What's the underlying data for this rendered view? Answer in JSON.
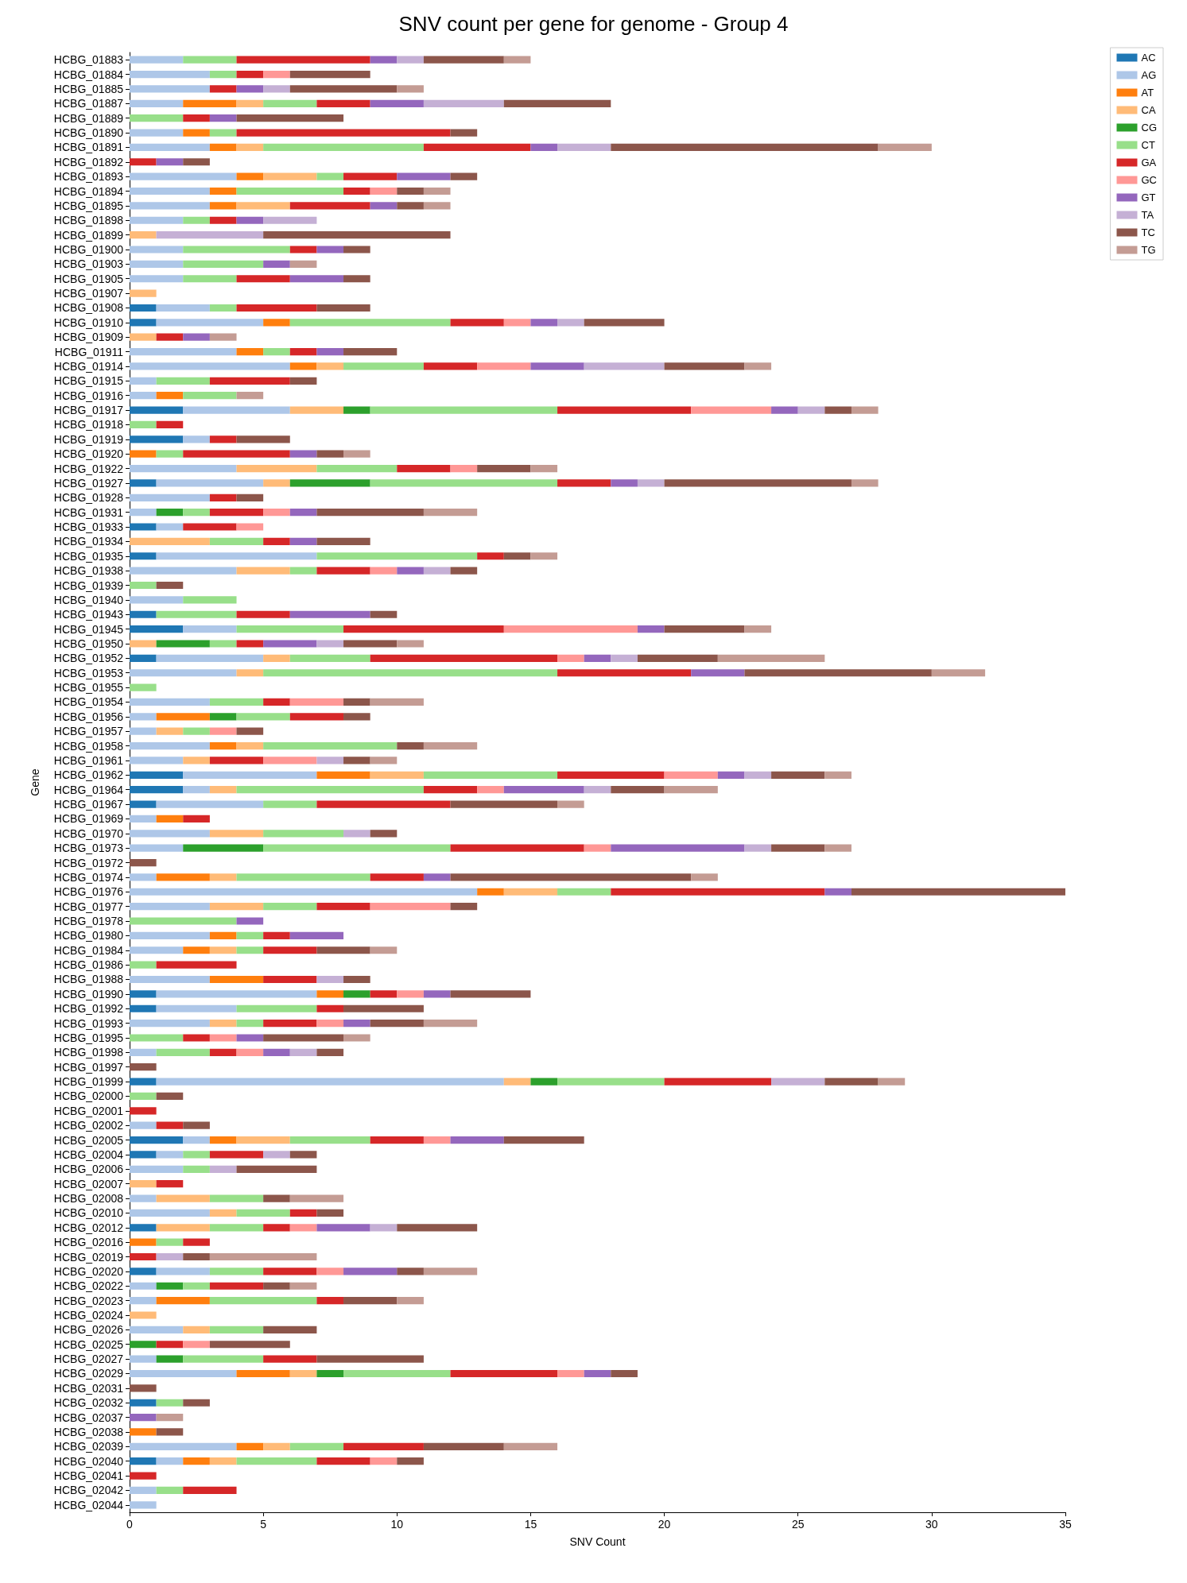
{
  "chart_data": {
    "type": "bar",
    "orientation": "horizontal",
    "stacked": true,
    "title": "SNV count per gene for genome - Group 4",
    "xlabel": "SNV Count",
    "ylabel": "Gene",
    "legend": "top right",
    "grid": false,
    "xlim": [
      0,
      35
    ],
    "xticks": [
      0,
      5,
      10,
      15,
      20,
      25,
      30,
      35
    ],
    "categories": [
      "HCBG_01883",
      "HCBG_01884",
      "HCBG_01885",
      "HCBG_01887",
      "HCBG_01889",
      "HCBG_01890",
      "HCBG_01891",
      "HCBG_01892",
      "HCBG_01893",
      "HCBG_01894",
      "HCBG_01895",
      "HCBG_01898",
      "HCBG_01899",
      "HCBG_01900",
      "HCBG_01903",
      "HCBG_01905",
      "HCBG_01907",
      "HCBG_01908",
      "HCBG_01910",
      "HCBG_01909",
      "HCBG_01911",
      "HCBG_01914",
      "HCBG_01915",
      "HCBG_01916",
      "HCBG_01917",
      "HCBG_01918",
      "HCBG_01919",
      "HCBG_01920",
      "HCBG_01922",
      "HCBG_01927",
      "HCBG_01928",
      "HCBG_01931",
      "HCBG_01933",
      "HCBG_01934",
      "HCBG_01935",
      "HCBG_01938",
      "HCBG_01939",
      "HCBG_01940",
      "HCBG_01943",
      "HCBG_01945",
      "HCBG_01950",
      "HCBG_01952",
      "HCBG_01953",
      "HCBG_01955",
      "HCBG_01954",
      "HCBG_01956",
      "HCBG_01957",
      "HCBG_01958",
      "HCBG_01961",
      "HCBG_01962",
      "HCBG_01964",
      "HCBG_01967",
      "HCBG_01969",
      "HCBG_01970",
      "HCBG_01973",
      "HCBG_01972",
      "HCBG_01974",
      "HCBG_01976",
      "HCBG_01977",
      "HCBG_01978",
      "HCBG_01980",
      "HCBG_01984",
      "HCBG_01986",
      "HCBG_01988",
      "HCBG_01990",
      "HCBG_01992",
      "HCBG_01993",
      "HCBG_01995",
      "HCBG_01998",
      "HCBG_01997",
      "HCBG_01999",
      "HCBG_02000",
      "HCBG_02001",
      "HCBG_02002",
      "HCBG_02005",
      "HCBG_02004",
      "HCBG_02006",
      "HCBG_02007",
      "HCBG_02008",
      "HCBG_02010",
      "HCBG_02012",
      "HCBG_02016",
      "HCBG_02019",
      "HCBG_02020",
      "HCBG_02022",
      "HCBG_02023",
      "HCBG_02024",
      "HCBG_02026",
      "HCBG_02025",
      "HCBG_02027",
      "HCBG_02029",
      "HCBG_02031",
      "HCBG_02032",
      "HCBG_02037",
      "HCBG_02038",
      "HCBG_02039",
      "HCBG_02040",
      "HCBG_02041",
      "HCBG_02042",
      "HCBG_02044"
    ],
    "series": [
      {
        "name": "AC",
        "color": "#1f77b4",
        "values": [
          0,
          0,
          0,
          0,
          0,
          0,
          0,
          0,
          0,
          0,
          0,
          0,
          0,
          0,
          0,
          0,
          0,
          1,
          1,
          0,
          0,
          0,
          0,
          0,
          2,
          0,
          2,
          0,
          0,
          1,
          0,
          0,
          1,
          0,
          1,
          0,
          0,
          0,
          1,
          2,
          0,
          1,
          0,
          0,
          0,
          0,
          0,
          0,
          0,
          2,
          2,
          1,
          0,
          0,
          0,
          0,
          0,
          0,
          0,
          0,
          0,
          0,
          0,
          0,
          1,
          1,
          0,
          0,
          0,
          0,
          1,
          0,
          0,
          0,
          2,
          1,
          0,
          0,
          0,
          0,
          1,
          0,
          0,
          1,
          0,
          0,
          0,
          0,
          0,
          0,
          0,
          0,
          1,
          0,
          0,
          0,
          1,
          0,
          0,
          0
        ]
      },
      {
        "name": "AG",
        "color": "#aec7e8",
        "values": [
          2,
          3,
          3,
          2,
          0,
          2,
          3,
          0,
          4,
          3,
          3,
          2,
          0,
          2,
          2,
          2,
          0,
          2,
          4,
          0,
          4,
          6,
          1,
          1,
          4,
          0,
          1,
          0,
          4,
          4,
          3,
          1,
          1,
          0,
          6,
          4,
          0,
          2,
          0,
          2,
          0,
          4,
          4,
          0,
          3,
          1,
          1,
          3,
          2,
          5,
          1,
          4,
          1,
          3,
          2,
          0,
          1,
          13,
          3,
          0,
          3,
          2,
          0,
          3,
          6,
          3,
          3,
          0,
          1,
          0,
          13,
          0,
          0,
          1,
          1,
          1,
          2,
          0,
          1,
          3,
          0,
          0,
          0,
          2,
          1,
          1,
          0,
          2,
          0,
          1,
          4,
          0,
          0,
          0,
          0,
          4,
          1,
          0,
          1,
          1
        ]
      },
      {
        "name": "AT",
        "color": "#ff7f0e",
        "values": [
          0,
          0,
          0,
          2,
          0,
          1,
          1,
          0,
          1,
          1,
          1,
          0,
          0,
          0,
          0,
          0,
          0,
          0,
          1,
          0,
          1,
          1,
          0,
          1,
          0,
          0,
          0,
          1,
          0,
          0,
          0,
          0,
          0,
          0,
          0,
          0,
          0,
          0,
          0,
          0,
          0,
          0,
          0,
          0,
          0,
          2,
          0,
          1,
          0,
          2,
          0,
          0,
          1,
          0,
          0,
          0,
          2,
          1,
          0,
          0,
          1,
          1,
          0,
          2,
          1,
          0,
          0,
          0,
          0,
          0,
          0,
          0,
          0,
          0,
          1,
          0,
          0,
          0,
          0,
          0,
          0,
          1,
          0,
          0,
          0,
          2,
          0,
          0,
          0,
          0,
          2,
          0,
          0,
          0,
          1,
          1,
          1,
          0,
          0,
          0
        ]
      },
      {
        "name": "CA",
        "color": "#ffbb78",
        "values": [
          0,
          0,
          0,
          1,
          0,
          0,
          1,
          0,
          2,
          0,
          2,
          0,
          1,
          0,
          0,
          0,
          1,
          0,
          0,
          1,
          0,
          1,
          0,
          0,
          2,
          0,
          0,
          0,
          3,
          1,
          0,
          0,
          0,
          3,
          0,
          2,
          0,
          0,
          0,
          0,
          1,
          1,
          1,
          0,
          0,
          0,
          1,
          1,
          1,
          2,
          1,
          0,
          0,
          2,
          0,
          0,
          1,
          2,
          2,
          0,
          0,
          1,
          0,
          0,
          0,
          0,
          1,
          0,
          0,
          0,
          1,
          0,
          0,
          0,
          2,
          0,
          0,
          1,
          2,
          1,
          2,
          0,
          0,
          0,
          0,
          0,
          1,
          1,
          0,
          0,
          1,
          0,
          0,
          0,
          0,
          1,
          1,
          0,
          0,
          0
        ]
      },
      {
        "name": "CG",
        "color": "#2ca02c",
        "values": [
          0,
          0,
          0,
          0,
          0,
          0,
          0,
          0,
          0,
          0,
          0,
          0,
          0,
          0,
          0,
          0,
          0,
          0,
          0,
          0,
          0,
          0,
          0,
          0,
          1,
          0,
          0,
          0,
          0,
          3,
          0,
          1,
          0,
          0,
          0,
          0,
          0,
          0,
          0,
          0,
          2,
          0,
          0,
          0,
          0,
          1,
          0,
          0,
          0,
          0,
          0,
          0,
          0,
          0,
          3,
          0,
          0,
          0,
          0,
          0,
          0,
          0,
          0,
          0,
          1,
          0,
          0,
          0,
          0,
          0,
          1,
          0,
          0,
          0,
          0,
          0,
          0,
          0,
          0,
          0,
          0,
          0,
          0,
          0,
          1,
          0,
          0,
          0,
          1,
          1,
          1,
          0,
          0,
          0,
          0,
          0,
          0,
          0,
          0,
          0
        ]
      },
      {
        "name": "CT",
        "color": "#98df8a",
        "values": [
          2,
          1,
          0,
          2,
          2,
          1,
          6,
          0,
          1,
          4,
          0,
          1,
          0,
          4,
          3,
          2,
          0,
          1,
          6,
          0,
          1,
          3,
          2,
          2,
          7,
          1,
          0,
          1,
          3,
          7,
          0,
          1,
          0,
          2,
          6,
          1,
          1,
          2,
          3,
          4,
          1,
          3,
          11,
          1,
          2,
          2,
          1,
          5,
          0,
          5,
          7,
          2,
          0,
          3,
          7,
          0,
          5,
          2,
          2,
          4,
          1,
          1,
          1,
          0,
          0,
          3,
          1,
          2,
          2,
          0,
          4,
          1,
          0,
          0,
          3,
          1,
          1,
          0,
          2,
          2,
          2,
          1,
          0,
          2,
          1,
          4,
          0,
          2,
          0,
          3,
          4,
          0,
          1,
          0,
          0,
          2,
          3,
          0,
          1,
          0
        ]
      },
      {
        "name": "GA",
        "color": "#d62728",
        "values": [
          5,
          1,
          1,
          2,
          1,
          8,
          4,
          1,
          2,
          1,
          3,
          1,
          0,
          1,
          0,
          2,
          0,
          3,
          2,
          1,
          1,
          2,
          3,
          0,
          5,
          1,
          1,
          4,
          2,
          2,
          1,
          2,
          2,
          1,
          1,
          2,
          0,
          0,
          2,
          6,
          1,
          7,
          5,
          0,
          1,
          2,
          0,
          0,
          2,
          4,
          2,
          5,
          1,
          0,
          5,
          0,
          2,
          8,
          2,
          0,
          1,
          2,
          3,
          2,
          1,
          1,
          2,
          1,
          1,
          0,
          4,
          0,
          1,
          1,
          2,
          2,
          0,
          1,
          0,
          1,
          1,
          1,
          1,
          2,
          2,
          1,
          0,
          0,
          1,
          2,
          4,
          0,
          0,
          0,
          0,
          3,
          2,
          1,
          2,
          0
        ]
      },
      {
        "name": "GC",
        "color": "#ff9896",
        "values": [
          0,
          1,
          0,
          0,
          0,
          0,
          0,
          0,
          0,
          1,
          0,
          0,
          0,
          0,
          0,
          0,
          0,
          0,
          1,
          0,
          0,
          2,
          0,
          0,
          3,
          0,
          0,
          0,
          1,
          0,
          0,
          1,
          1,
          0,
          0,
          1,
          0,
          0,
          0,
          5,
          0,
          1,
          0,
          0,
          2,
          0,
          1,
          0,
          2,
          2,
          1,
          0,
          0,
          0,
          1,
          0,
          0,
          0,
          3,
          0,
          0,
          0,
          0,
          0,
          1,
          0,
          1,
          1,
          1,
          0,
          0,
          0,
          0,
          0,
          1,
          0,
          0,
          0,
          0,
          0,
          1,
          0,
          0,
          1,
          0,
          0,
          0,
          0,
          1,
          0,
          1,
          0,
          0,
          0,
          0,
          0,
          1,
          0,
          0,
          0
        ]
      },
      {
        "name": "GT",
        "color": "#9467bd",
        "values": [
          1,
          0,
          1,
          2,
          1,
          0,
          1,
          1,
          2,
          0,
          1,
          1,
          0,
          1,
          1,
          2,
          0,
          0,
          1,
          1,
          1,
          2,
          0,
          0,
          1,
          0,
          0,
          1,
          0,
          1,
          0,
          1,
          0,
          1,
          0,
          1,
          0,
          0,
          3,
          1,
          2,
          1,
          2,
          0,
          0,
          0,
          0,
          0,
          0,
          1,
          3,
          0,
          0,
          0,
          5,
          0,
          1,
          1,
          0,
          1,
          2,
          0,
          0,
          0,
          1,
          0,
          1,
          1,
          1,
          0,
          0,
          0,
          0,
          0,
          2,
          0,
          0,
          0,
          0,
          0,
          2,
          0,
          0,
          2,
          0,
          0,
          0,
          0,
          0,
          0,
          1,
          0,
          0,
          1,
          0,
          0,
          0,
          0,
          0,
          0
        ]
      },
      {
        "name": "TA",
        "color": "#c5b0d5",
        "values": [
          1,
          0,
          1,
          3,
          0,
          0,
          2,
          0,
          0,
          0,
          0,
          2,
          4,
          0,
          0,
          0,
          0,
          0,
          1,
          0,
          0,
          3,
          0,
          0,
          1,
          0,
          0,
          0,
          0,
          1,
          0,
          0,
          0,
          0,
          0,
          1,
          0,
          0,
          0,
          0,
          1,
          1,
          0,
          0,
          0,
          0,
          0,
          0,
          1,
          1,
          1,
          0,
          0,
          1,
          1,
          0,
          0,
          0,
          0,
          0,
          0,
          0,
          0,
          1,
          0,
          0,
          0,
          0,
          1,
          0,
          2,
          0,
          0,
          0,
          0,
          1,
          1,
          0,
          0,
          0,
          1,
          0,
          1,
          0,
          0,
          0,
          0,
          0,
          0,
          0,
          0,
          0,
          0,
          0,
          0,
          0,
          0,
          0,
          0,
          0
        ]
      },
      {
        "name": "TC",
        "color": "#8c564b",
        "values": [
          3,
          3,
          4,
          4,
          4,
          1,
          10,
          1,
          1,
          1,
          1,
          0,
          7,
          1,
          0,
          1,
          0,
          2,
          3,
          0,
          2,
          3,
          1,
          0,
          1,
          0,
          2,
          1,
          2,
          7,
          1,
          4,
          0,
          2,
          1,
          1,
          1,
          0,
          1,
          3,
          2,
          3,
          7,
          0,
          1,
          1,
          1,
          1,
          1,
          2,
          2,
          4,
          0,
          1,
          2,
          1,
          9,
          8,
          1,
          0,
          0,
          2,
          0,
          1,
          3,
          3,
          2,
          3,
          1,
          1,
          2,
          1,
          0,
          1,
          3,
          1,
          3,
          0,
          1,
          1,
          3,
          0,
          1,
          1,
          1,
          2,
          0,
          2,
          3,
          4,
          1,
          1,
          1,
          0,
          1,
          3,
          1,
          0,
          0,
          0
        ]
      },
      {
        "name": "TG",
        "color": "#c49c94",
        "values": [
          1,
          0,
          1,
          0,
          0,
          0,
          2,
          0,
          0,
          1,
          1,
          0,
          0,
          0,
          1,
          0,
          0,
          0,
          0,
          1,
          0,
          1,
          0,
          1,
          1,
          0,
          0,
          1,
          1,
          1,
          0,
          2,
          0,
          0,
          1,
          0,
          0,
          0,
          0,
          1,
          1,
          4,
          2,
          0,
          2,
          0,
          0,
          2,
          1,
          1,
          2,
          1,
          0,
          0,
          1,
          0,
          1,
          0,
          0,
          0,
          0,
          1,
          0,
          0,
          0,
          0,
          2,
          1,
          0,
          0,
          1,
          0,
          0,
          0,
          0,
          0,
          0,
          0,
          2,
          0,
          0,
          0,
          4,
          2,
          1,
          1,
          0,
          0,
          0,
          0,
          0,
          0,
          0,
          1,
          0,
          2,
          0,
          0,
          0,
          0
        ]
      }
    ]
  }
}
